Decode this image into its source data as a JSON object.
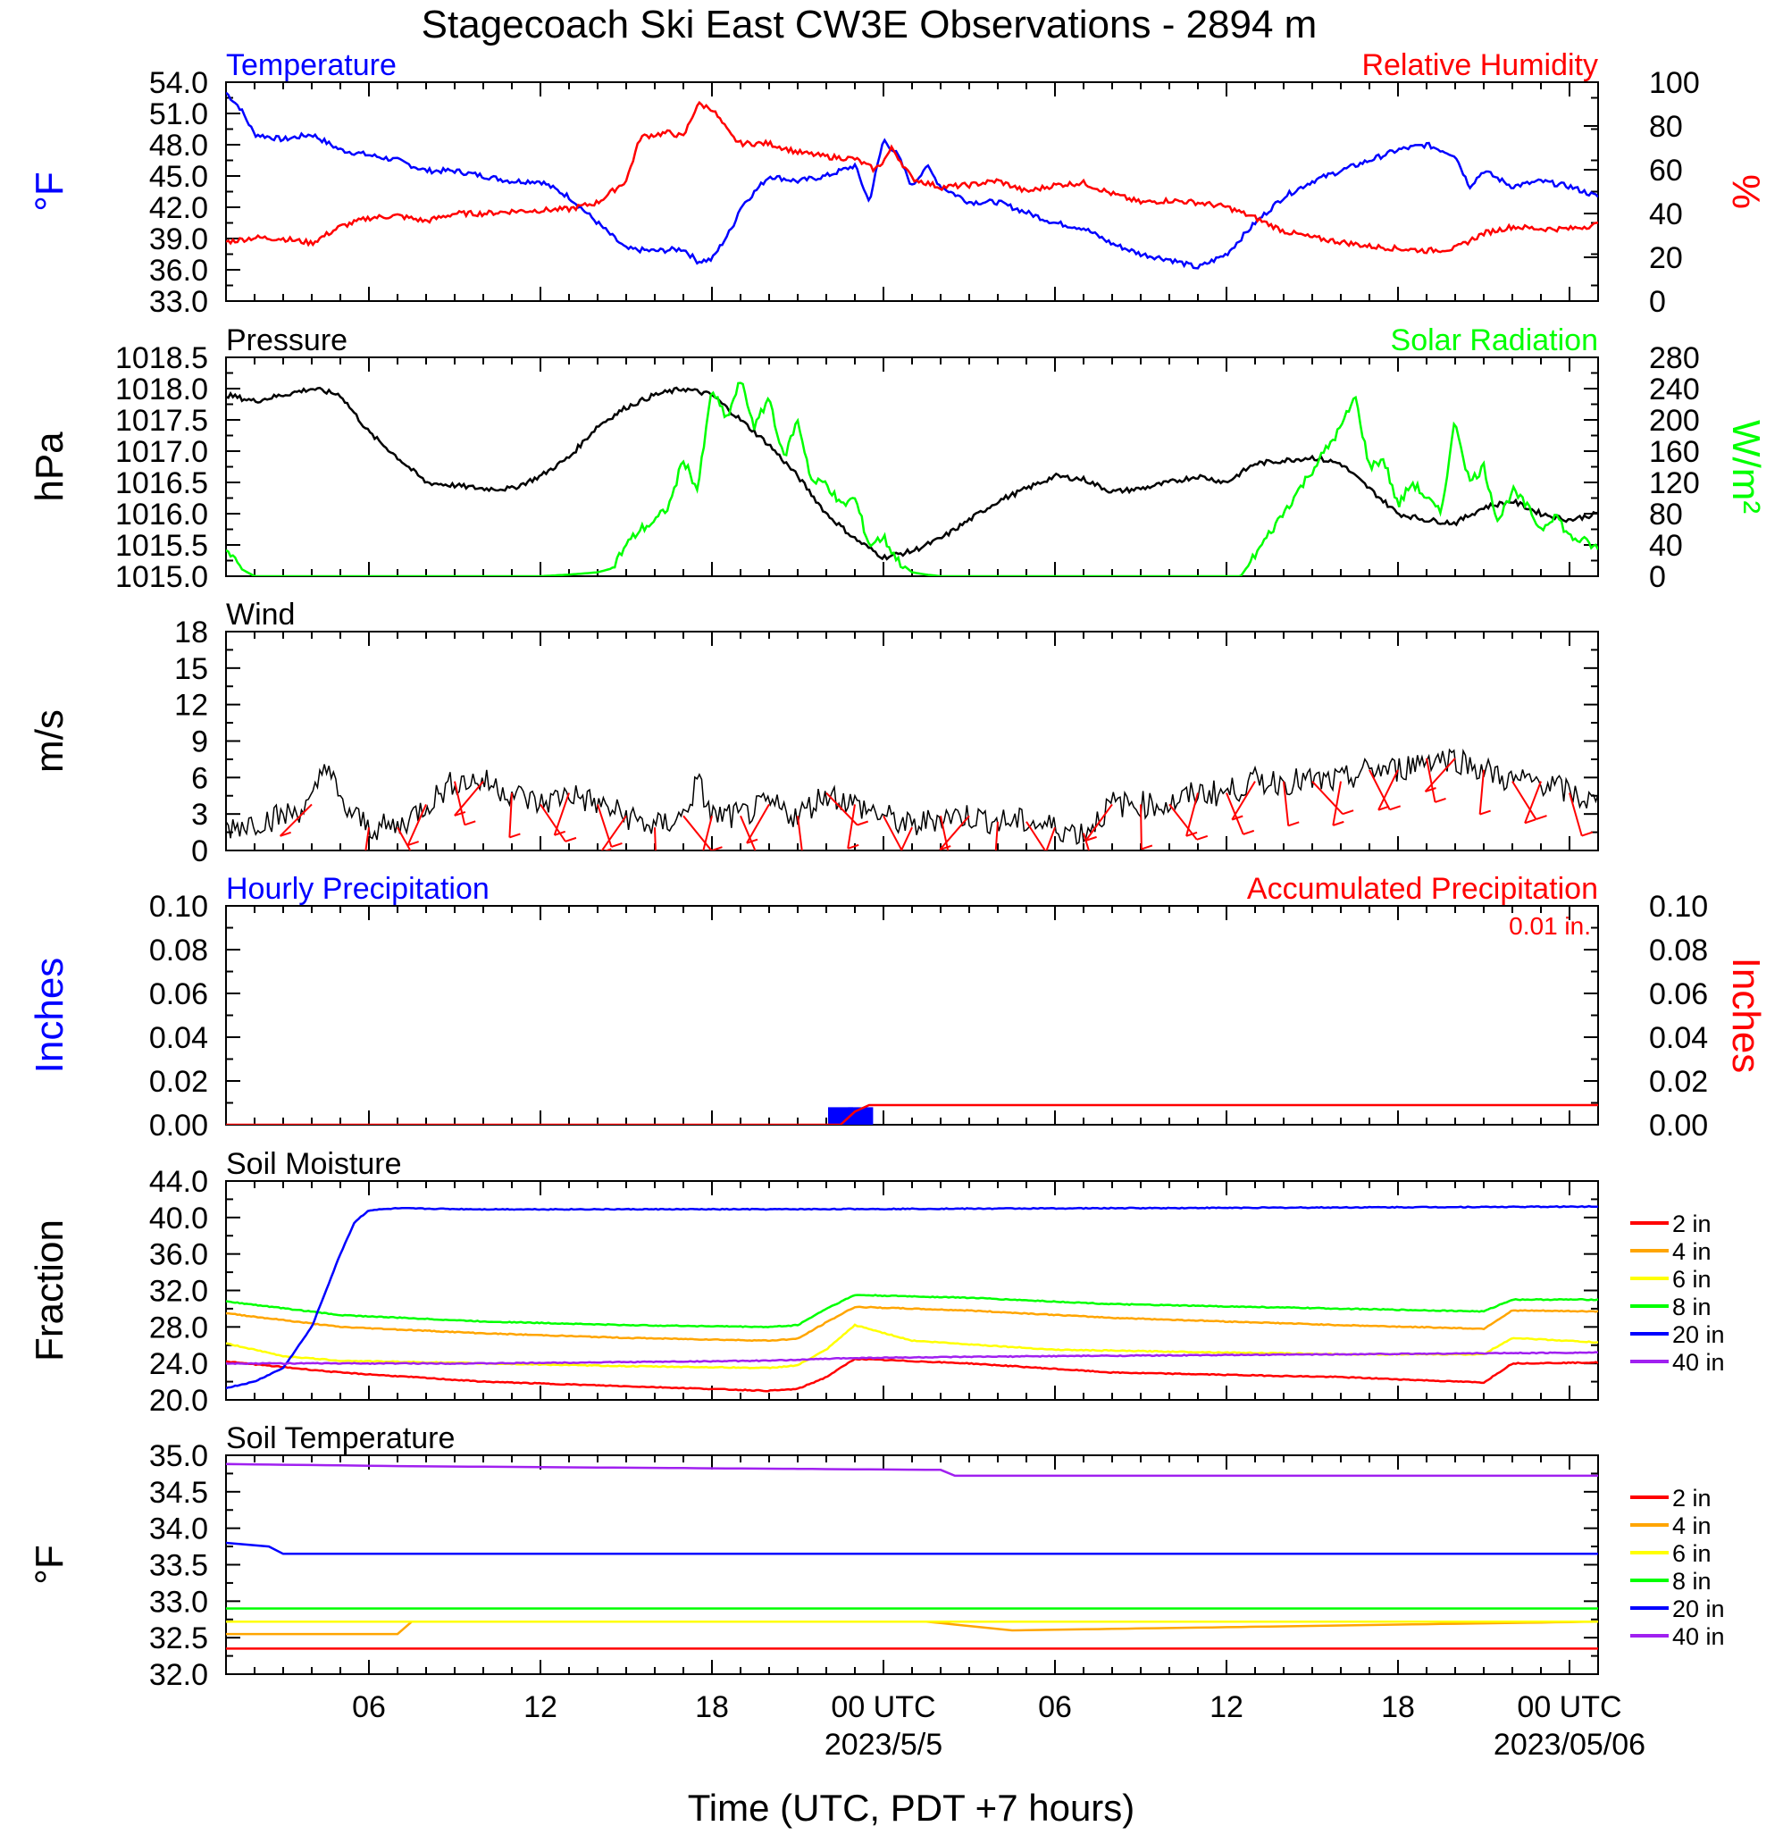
{
  "title": "Stagecoach Ski East CW3E Observations - 2894 m",
  "x_axis": {
    "label": "Time (UTC, PDT +7 hours)",
    "ticks": [
      "06",
      "12",
      "18",
      "00 UTC",
      "06",
      "12",
      "18",
      "00 UTC"
    ],
    "tick_positions_hours": [
      6,
      12,
      18,
      24,
      30,
      36,
      42,
      48
    ],
    "dates": [
      "2023/5/5",
      "2023/05/06"
    ],
    "range_hours": [
      1,
      49
    ]
  },
  "colors": {
    "blue": "#0000ff",
    "red": "#ff0000",
    "green": "#00ff00",
    "black": "#000000",
    "orange": "#ffa500",
    "yellow": "#ffff00",
    "purple": "#a020f0"
  },
  "chart_data": [
    {
      "type": "line",
      "left_title": "Temperature",
      "right_title": "Relative Humidity",
      "ylabel_left": "°F",
      "ylabel_right": "%",
      "ylim_left": [
        33,
        54
      ],
      "ylim_right": [
        0,
        100
      ],
      "yticks_left": [
        "33.0",
        "36.0",
        "39.0",
        "42.0",
        "45.0",
        "48.0",
        "51.0",
        "54.0"
      ],
      "yticks_right": [
        "0",
        "20",
        "40",
        "60",
        "80",
        "100"
      ],
      "series": [
        {
          "axis": "left",
          "color": "#0000ff",
          "x": [
            1,
            1.5,
            2,
            3,
            4,
            5,
            6,
            7,
            8,
            9,
            10,
            11,
            12,
            13,
            14,
            15,
            16,
            17,
            17.5,
            18,
            18.7,
            19,
            20,
            21,
            22,
            23,
            23.5,
            24,
            24.5,
            25,
            25.5,
            26,
            27,
            28,
            29,
            30,
            31,
            32,
            33,
            34,
            35,
            36,
            37,
            38,
            39,
            40,
            41,
            42,
            43,
            44,
            44.5,
            45,
            46,
            47,
            48,
            49
          ],
          "y": [
            53,
            51.5,
            49,
            48.5,
            49,
            47.5,
            47,
            46.5,
            45.5,
            45.5,
            45,
            44.5,
            44.5,
            43,
            40.5,
            38,
            37.8,
            38,
            36.8,
            37,
            40,
            42,
            45,
            44.5,
            45,
            46,
            42.5,
            48.5,
            47,
            44,
            46,
            44,
            42.5,
            42.5,
            41.5,
            40.5,
            40,
            38.5,
            37.5,
            37,
            36.2,
            37.5,
            40.5,
            43,
            44.5,
            45.5,
            46.5,
            47.5,
            48,
            47,
            44,
            45.5,
            44,
            44.5,
            44,
            43
          ]
        },
        {
          "axis": "right",
          "color": "#ff0000",
          "x": [
            1,
            2,
            3,
            4,
            5,
            6,
            7,
            8,
            9,
            10,
            11,
            12,
            13,
            14,
            15,
            15.5,
            16,
            16.5,
            17,
            17.5,
            18,
            18.7,
            19,
            20,
            21,
            22,
            23,
            23.7,
            24,
            24.3,
            25,
            26,
            27,
            28,
            29,
            30,
            31,
            32,
            33,
            34,
            35,
            36,
            37,
            38,
            39,
            40,
            41,
            42,
            43,
            44,
            45,
            46,
            47,
            48,
            49
          ],
          "y": [
            27,
            29,
            28.5,
            26.5,
            34,
            38,
            39,
            36.5,
            40,
            40,
            41,
            41.5,
            42,
            45,
            55,
            75,
            76,
            77,
            75,
            90,
            88,
            75,
            72,
            72,
            68,
            66,
            65,
            60,
            64,
            70,
            56,
            52,
            53,
            55,
            50,
            53,
            54,
            49,
            45,
            46,
            45,
            43,
            38,
            32,
            29,
            27,
            25,
            24,
            23,
            24,
            31,
            34,
            33,
            33,
            35
          ]
        }
      ]
    },
    {
      "type": "line",
      "left_title": "Pressure",
      "right_title": "Solar Radiation",
      "ylabel_left": "hPa",
      "ylabel_right": "W/m²",
      "ylim_left": [
        1015,
        1018.5
      ],
      "ylim_right": [
        0,
        280
      ],
      "yticks_left": [
        "1015.0",
        "1015.5",
        "1016.0",
        "1016.5",
        "1017.0",
        "1017.5",
        "1018.0",
        "1018.5"
      ],
      "yticks_right": [
        "0",
        "40",
        "80",
        "120",
        "160",
        "200",
        "240",
        "280"
      ],
      "series": [
        {
          "axis": "left",
          "color": "#000000",
          "x": [
            1,
            2,
            3,
            4,
            5,
            6,
            7,
            8,
            9,
            10,
            11,
            12,
            13,
            14,
            15,
            16,
            17,
            18,
            19,
            20,
            21,
            22,
            23,
            24,
            25,
            26,
            27,
            28,
            29,
            30,
            31,
            32,
            33,
            34,
            35,
            36,
            37,
            38,
            39,
            40,
            41,
            42,
            43,
            44,
            45,
            46,
            47,
            48,
            49
          ],
          "y": [
            1017.9,
            1017.8,
            1017.9,
            1018.0,
            1017.9,
            1017.3,
            1016.9,
            1016.5,
            1016.45,
            1016.4,
            1016.4,
            1016.6,
            1016.9,
            1017.4,
            1017.7,
            1017.9,
            1018.0,
            1017.9,
            1017.5,
            1017.1,
            1016.6,
            1016.0,
            1015.6,
            1015.3,
            1015.4,
            1015.6,
            1015.9,
            1016.2,
            1016.4,
            1016.6,
            1016.55,
            1016.35,
            1016.4,
            1016.5,
            1016.6,
            1016.5,
            1016.8,
            1016.85,
            1016.9,
            1016.8,
            1016.4,
            1016.0,
            1015.9,
            1015.85,
            1016.1,
            1016.2,
            1016.0,
            1015.9,
            1016.0
          ]
        },
        {
          "axis": "right",
          "color": "#00ff00",
          "x": [
            1,
            1.5,
            2,
            4,
            8,
            12,
            13,
            14,
            14.5,
            15,
            15.5,
            16,
            16.5,
            17,
            17.5,
            18,
            18.5,
            19,
            19.5,
            20,
            20.5,
            21,
            21.5,
            22,
            22.5,
            23,
            23.5,
            24,
            24.5,
            25,
            25.5,
            26,
            27,
            30,
            35,
            36,
            36.5,
            40,
            40.5,
            41,
            41.5,
            42,
            42.5,
            43,
            43.5,
            44,
            44.5,
            45,
            45.5,
            46,
            46.5,
            47,
            47.5,
            48,
            48.5,
            49
          ],
          "y": [
            35,
            10,
            0,
            0,
            0,
            0,
            2,
            5,
            10,
            40,
            60,
            70,
            90,
            150,
            110,
            240,
            200,
            250,
            190,
            230,
            150,
            200,
            120,
            120,
            90,
            100,
            40,
            50,
            20,
            5,
            2,
            0,
            0,
            0,
            0,
            0,
            0,
            190,
            230,
            140,
            150,
            90,
            120,
            100,
            80,
            200,
            120,
            140,
            70,
            110,
            90,
            60,
            80,
            50,
            45,
            35
          ]
        }
      ]
    },
    {
      "type": "line",
      "left_title": "Wind",
      "ylabel_left": "m/s",
      "ylim_left": [
        0,
        19
      ],
      "yticks_left": [
        "0",
        "3",
        "6",
        "9",
        "12",
        "15",
        "18"
      ],
      "series": [
        {
          "axis": "left",
          "color": "#000000",
          "x": [
            1,
            2,
            3,
            4,
            4.5,
            5,
            6,
            7,
            8,
            9,
            10,
            11,
            12,
            13,
            14,
            15,
            16,
            17,
            17.5,
            18,
            19,
            20,
            21,
            22,
            23,
            24,
            25,
            26,
            27,
            28,
            29,
            30,
            31,
            32,
            33,
            34,
            35,
            36,
            37,
            38,
            39,
            40,
            41,
            42,
            43,
            44,
            45,
            46,
            47,
            48,
            49
          ],
          "y": [
            2,
            2.5,
            3,
            4,
            8,
            4,
            2,
            2,
            4,
            6,
            6,
            5,
            4,
            5,
            4,
            3,
            2,
            3,
            6,
            3,
            3,
            4,
            3,
            5,
            4,
            3,
            2,
            3,
            3,
            2.5,
            2.5,
            2,
            1.5,
            4,
            4,
            4,
            5,
            5,
            6,
            6,
            6,
            6,
            7,
            7,
            8,
            8,
            7,
            6,
            6,
            5,
            4
          ]
        }
      ],
      "wind_barbs_hours": [
        4,
        6,
        7,
        8,
        9,
        10,
        11,
        12,
        13,
        14,
        15,
        16,
        17,
        18,
        19,
        20,
        21,
        22,
        23,
        24,
        25,
        26,
        27,
        28,
        29,
        30,
        31,
        32,
        33,
        34,
        35,
        36,
        37,
        38,
        39,
        40,
        41,
        42,
        43,
        44,
        45,
        46,
        47,
        48
      ]
    },
    {
      "type": "bar",
      "left_title": "Hourly Precipitation",
      "right_title": "Accumulated Precipitation",
      "total_label": "0.01 in.",
      "ylabel_left": "Inches",
      "ylabel_right": "Inches",
      "ylim_left": [
        0,
        0.1
      ],
      "ylim_right": [
        0,
        0.1
      ],
      "yticks_left": [
        "0.00",
        "0.02",
        "0.04",
        "0.06",
        "0.08",
        "0.10"
      ],
      "yticks_right": [
        "0.00",
        "0.02",
        "0.04",
        "0.06",
        "0.08",
        "0.10"
      ],
      "bars": {
        "color": "#0000ff",
        "x": [
          22.5,
          23.2
        ],
        "values": [
          0.008,
          0.008
        ]
      },
      "series": [
        {
          "axis": "right",
          "color": "#ff0000",
          "x": [
            1,
            22.6,
            23.2,
            49
          ],
          "y": [
            0,
            0,
            0.009,
            0.009
          ]
        }
      ]
    },
    {
      "type": "line",
      "left_title": "Soil Moisture",
      "ylabel_left": "Fraction",
      "ylim_left": [
        20,
        44
      ],
      "yticks_left": [
        "20.0",
        "24.0",
        "28.0",
        "32.0",
        "36.0",
        "40.0",
        "44.0"
      ],
      "legend": [
        "2 in",
        "4 in",
        "6 in",
        "8 in",
        "20 in",
        "40 in"
      ],
      "series": [
        {
          "name": "2 in",
          "color": "#ff0000",
          "x": [
            1,
            5,
            10,
            15,
            20,
            21,
            22,
            23,
            27,
            32,
            40,
            45,
            46,
            49
          ],
          "y": [
            24.2,
            23,
            22,
            21.5,
            21,
            21.2,
            22.5,
            24.5,
            24,
            23,
            22.5,
            21.9,
            24,
            24.1
          ]
        },
        {
          "name": "4 in",
          "color": "#ffa500",
          "x": [
            1,
            5,
            10,
            15,
            20,
            21,
            22,
            23,
            27,
            32,
            40,
            45,
            46,
            49
          ],
          "y": [
            29.5,
            28,
            27.3,
            26.8,
            26.5,
            26.7,
            28.5,
            30.2,
            29.8,
            29,
            28.2,
            27.8,
            29.8,
            29.7
          ]
        },
        {
          "name": "6 in",
          "color": "#ffff00",
          "x": [
            1,
            3,
            5,
            10,
            15,
            20,
            21,
            22,
            23,
            25,
            30,
            40,
            45,
            46,
            49
          ],
          "y": [
            26.2,
            24.8,
            24.3,
            24,
            23.7,
            23.5,
            23.8,
            25.5,
            28.2,
            26.5,
            25.5,
            25,
            25,
            26.8,
            26.3
          ]
        },
        {
          "name": "8 in",
          "color": "#00ff00",
          "x": [
            1,
            5,
            10,
            15,
            20,
            21,
            22,
            23,
            27,
            32,
            40,
            45,
            46,
            49
          ],
          "y": [
            30.8,
            29.3,
            28.6,
            28.2,
            28,
            28.2,
            30,
            31.5,
            31.2,
            30.5,
            30,
            29.7,
            31,
            31
          ]
        },
        {
          "name": "20 in",
          "color": "#0000ff",
          "x": [
            1,
            2,
            3,
            4,
            5,
            5.5,
            6,
            7,
            10,
            20,
            30,
            40,
            49
          ],
          "y": [
            21.3,
            22,
            23.5,
            28,
            36,
            39.5,
            40.8,
            41,
            40.9,
            40.9,
            41,
            41.1,
            41.2
          ]
        },
        {
          "name": "40 in",
          "color": "#a020f0",
          "x": [
            1,
            10,
            20,
            23,
            30,
            40,
            49
          ],
          "y": [
            24,
            24,
            24.3,
            24.6,
            24.8,
            25,
            25.2
          ]
        }
      ]
    },
    {
      "type": "line",
      "left_title": "Soil Temperature",
      "ylabel_left": "°F",
      "ylim_left": [
        32,
        35
      ],
      "yticks_left": [
        "32.0",
        "32.5",
        "33.0",
        "33.5",
        "34.0",
        "34.5",
        "35.0"
      ],
      "legend": [
        "2 in",
        "4 in",
        "6 in",
        "8 in",
        "20 in",
        "40 in"
      ],
      "series": [
        {
          "name": "2 in",
          "color": "#ff0000",
          "x": [
            1,
            49
          ],
          "y": [
            32.35,
            32.35
          ]
        },
        {
          "name": "4 in",
          "color": "#ffa500",
          "x": [
            1,
            7,
            7.2,
            25.5,
            28.5,
            49
          ],
          "y": [
            32.55,
            32.55,
            32.72,
            32.72,
            32.6,
            32.72
          ]
        },
        {
          "name": "6 in",
          "color": "#ffff00",
          "x": [
            1,
            49
          ],
          "y": [
            32.72,
            32.72
          ]
        },
        {
          "name": "8 in",
          "color": "#00ff00",
          "x": [
            1,
            49
          ],
          "y": [
            32.9,
            32.9
          ]
        },
        {
          "name": "20 in",
          "color": "#0000ff",
          "x": [
            1,
            2.5,
            2.6,
            49
          ],
          "y": [
            33.8,
            33.75,
            33.65,
            33.65
          ]
        },
        {
          "name": "40 in",
          "color": "#a020f0",
          "x": [
            1,
            7.5,
            26,
            26.1,
            49
          ],
          "y": [
            34.88,
            34.85,
            34.8,
            34.72,
            34.72
          ]
        }
      ]
    }
  ]
}
